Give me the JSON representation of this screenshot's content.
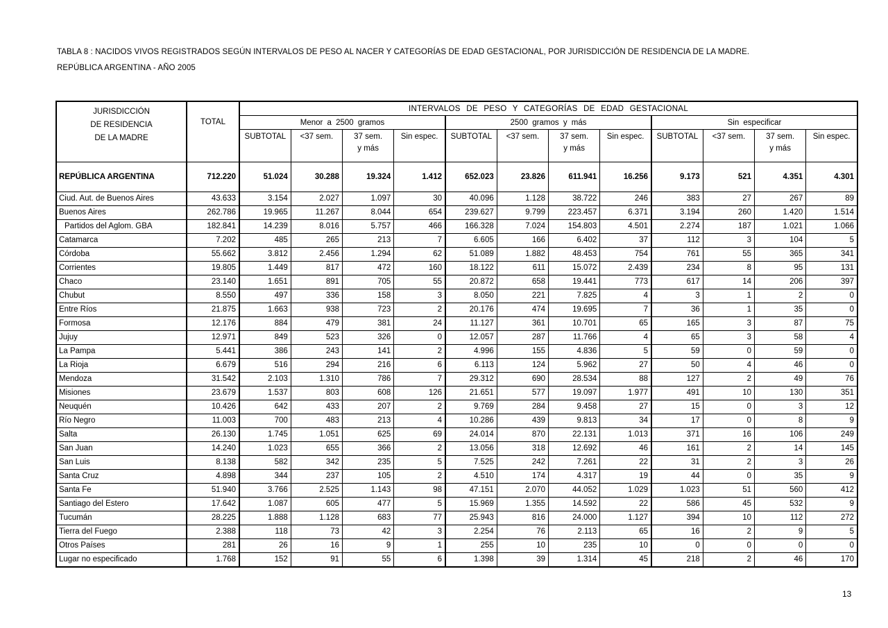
{
  "page": {
    "title_line1": "TABLA 8 : NACIDOS VIVOS REGISTRADOS SEGÚN INTERVALOS DE PESO AL NACER Y CATEGORÍAS DE EDAD GESTACIONAL, POR JURISDICCIÓN DE RESIDENCIA DE LA MADRE.",
    "title_line2": "REPÚBLICA ARGENTINA - AÑO 2005",
    "page_number": "13"
  },
  "table": {
    "header": {
      "jurisdiction_lines": [
        "JURISDICCIÓN",
        "DE RESIDENCIA",
        "DE LA MADRE"
      ],
      "total_label": "TOTAL",
      "span_label": "INTERVALOS DE PESO Y CATEGORÍAS DE EDAD GESTACIONAL",
      "groups": [
        "Menor a 2500 gramos",
        "2500 gramos y más",
        "Sin especificar"
      ],
      "columns": [
        {
          "l1": "SUBTOTAL",
          "l2": ""
        },
        {
          "l1": "<37 sem.",
          "l2": ""
        },
        {
          "l1": "37 sem.",
          "l2": "y más"
        },
        {
          "l1": "Sin espec.",
          "l2": ""
        }
      ]
    },
    "total_row": {
      "label": "REPÚBLICA ARGENTINA",
      "indent": false,
      "values": [
        "712.220",
        "51.024",
        "30.288",
        "19.324",
        "1.412",
        "652.023",
        "23.826",
        "611.941",
        "16.256",
        "9.173",
        "521",
        "4.351",
        "4.301"
      ]
    },
    "rows": [
      {
        "label": "Ciud. Aut. de  Buenos Aires",
        "indent": false,
        "values": [
          "43.633",
          "3.154",
          "2.027",
          "1.097",
          "30",
          "40.096",
          "1.128",
          "38.722",
          "246",
          "383",
          "27",
          "267",
          "89"
        ]
      },
      {
        "label": "Buenos Aires",
        "indent": false,
        "values": [
          "262.786",
          "19.965",
          "11.267",
          "8.044",
          "654",
          "239.627",
          "9.799",
          "223.457",
          "6.371",
          "3.194",
          "260",
          "1.420",
          "1.514"
        ]
      },
      {
        "label": "Partidos del Aglom. GBA",
        "indent": true,
        "values": [
          "182.841",
          "14.239",
          "8.016",
          "5.757",
          "466",
          "166.328",
          "7.024",
          "154.803",
          "4.501",
          "2.274",
          "187",
          "1.021",
          "1.066"
        ]
      },
      {
        "label": "Catamarca",
        "indent": false,
        "values": [
          "7.202",
          "485",
          "265",
          "213",
          "7",
          "6.605",
          "166",
          "6.402",
          "37",
          "112",
          "3",
          "104",
          "5"
        ]
      },
      {
        "label": "Córdoba",
        "indent": false,
        "values": [
          "55.662",
          "3.812",
          "2.456",
          "1.294",
          "62",
          "51.089",
          "1.882",
          "48.453",
          "754",
          "761",
          "55",
          "365",
          "341"
        ]
      },
      {
        "label": "Corrientes",
        "indent": false,
        "values": [
          "19.805",
          "1.449",
          "817",
          "472",
          "160",
          "18.122",
          "611",
          "15.072",
          "2.439",
          "234",
          "8",
          "95",
          "131"
        ]
      },
      {
        "label": "Chaco",
        "indent": false,
        "values": [
          "23.140",
          "1.651",
          "891",
          "705",
          "55",
          "20.872",
          "658",
          "19.441",
          "773",
          "617",
          "14",
          "206",
          "397"
        ]
      },
      {
        "label": "Chubut",
        "indent": false,
        "values": [
          "8.550",
          "497",
          "336",
          "158",
          "3",
          "8.050",
          "221",
          "7.825",
          "4",
          "3",
          "1",
          "2",
          "0"
        ]
      },
      {
        "label": "Entre Ríos",
        "indent": false,
        "values": [
          "21.875",
          "1.663",
          "938",
          "723",
          "2",
          "20.176",
          "474",
          "19.695",
          "7",
          "36",
          "1",
          "35",
          "0"
        ]
      },
      {
        "label": "Formosa",
        "indent": false,
        "values": [
          "12.176",
          "884",
          "479",
          "381",
          "24",
          "11.127",
          "361",
          "10.701",
          "65",
          "165",
          "3",
          "87",
          "75"
        ]
      },
      {
        "label": "Jujuy",
        "indent": false,
        "values": [
          "12.971",
          "849",
          "523",
          "326",
          "0",
          "12.057",
          "287",
          "11.766",
          "4",
          "65",
          "3",
          "58",
          "4"
        ]
      },
      {
        "label": "La Pampa",
        "indent": false,
        "values": [
          "5.441",
          "386",
          "243",
          "141",
          "2",
          "4.996",
          "155",
          "4.836",
          "5",
          "59",
          "0",
          "59",
          "0"
        ]
      },
      {
        "label": "La Rioja",
        "indent": false,
        "values": [
          "6.679",
          "516",
          "294",
          "216",
          "6",
          "6.113",
          "124",
          "5.962",
          "27",
          "50",
          "4",
          "46",
          "0"
        ]
      },
      {
        "label": "Mendoza",
        "indent": false,
        "values": [
          "31.542",
          "2.103",
          "1.310",
          "786",
          "7",
          "29.312",
          "690",
          "28.534",
          "88",
          "127",
          "2",
          "49",
          "76"
        ]
      },
      {
        "label": "Misiones",
        "indent": false,
        "values": [
          "23.679",
          "1.537",
          "803",
          "608",
          "126",
          "21.651",
          "577",
          "19.097",
          "1.977",
          "491",
          "10",
          "130",
          "351"
        ]
      },
      {
        "label": "Neuquén",
        "indent": false,
        "values": [
          "10.426",
          "642",
          "433",
          "207",
          "2",
          "9.769",
          "284",
          "9.458",
          "27",
          "15",
          "0",
          "3",
          "12"
        ]
      },
      {
        "label": "Río Negro",
        "indent": false,
        "values": [
          "11.003",
          "700",
          "483",
          "213",
          "4",
          "10.286",
          "439",
          "9.813",
          "34",
          "17",
          "0",
          "8",
          "9"
        ]
      },
      {
        "label": "Salta",
        "indent": false,
        "values": [
          "26.130",
          "1.745",
          "1.051",
          "625",
          "69",
          "24.014",
          "870",
          "22.131",
          "1.013",
          "371",
          "16",
          "106",
          "249"
        ]
      },
      {
        "label": "San Juan",
        "indent": false,
        "values": [
          "14.240",
          "1.023",
          "655",
          "366",
          "2",
          "13.056",
          "318",
          "12.692",
          "46",
          "161",
          "2",
          "14",
          "145"
        ]
      },
      {
        "label": "San Luis",
        "indent": false,
        "values": [
          "8.138",
          "582",
          "342",
          "235",
          "5",
          "7.525",
          "242",
          "7.261",
          "22",
          "31",
          "2",
          "3",
          "26"
        ]
      },
      {
        "label": "Santa Cruz",
        "indent": false,
        "values": [
          "4.898",
          "344",
          "237",
          "105",
          "2",
          "4.510",
          "174",
          "4.317",
          "19",
          "44",
          "0",
          "35",
          "9"
        ]
      },
      {
        "label": "Santa Fe",
        "indent": false,
        "values": [
          "51.940",
          "3.766",
          "2.525",
          "1.143",
          "98",
          "47.151",
          "2.070",
          "44.052",
          "1.029",
          "1.023",
          "51",
          "560",
          "412"
        ]
      },
      {
        "label": "Santiago del Estero",
        "indent": false,
        "values": [
          "17.642",
          "1.087",
          "605",
          "477",
          "5",
          "15.969",
          "1.355",
          "14.592",
          "22",
          "586",
          "45",
          "532",
          "9"
        ]
      },
      {
        "label": "Tucumán",
        "indent": false,
        "values": [
          "28.225",
          "1.888",
          "1.128",
          "683",
          "77",
          "25.943",
          "816",
          "24.000",
          "1.127",
          "394",
          "10",
          "112",
          "272"
        ]
      },
      {
        "label": "Tierra del Fuego",
        "indent": false,
        "values": [
          "2.388",
          "118",
          "73",
          "42",
          "3",
          "2.254",
          "76",
          "2.113",
          "65",
          "16",
          "2",
          "9",
          "5"
        ]
      },
      {
        "label": "Otros Países",
        "indent": false,
        "values": [
          "281",
          "26",
          "16",
          "9",
          "1",
          "255",
          "10",
          "235",
          "10",
          "0",
          "0",
          "0",
          "0"
        ]
      },
      {
        "label": "Lugar no especificado",
        "indent": false,
        "values": [
          "1.768",
          "152",
          "91",
          "55",
          "6",
          "1.398",
          "39",
          "1.314",
          "45",
          "218",
          "2",
          "46",
          "170"
        ]
      }
    ]
  }
}
